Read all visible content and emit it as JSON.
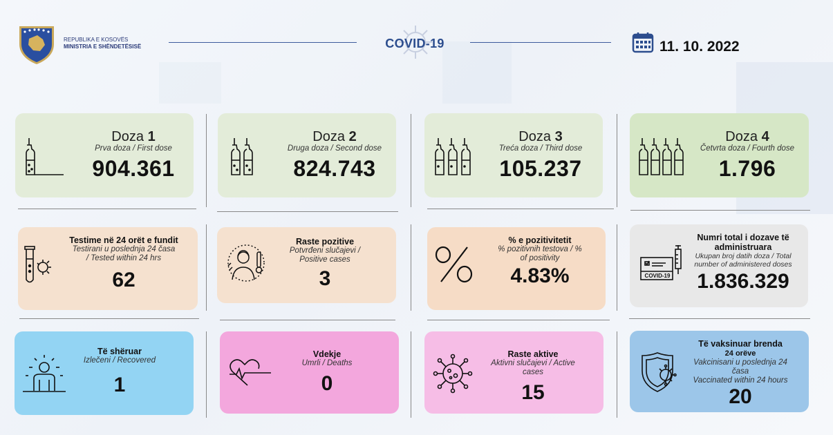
{
  "header": {
    "org_line1": "REPUBLIKA E KOSOVËS",
    "org_line2": "MINISTRIA E SHËNDETËSISË",
    "title": "COVID-19",
    "date": "11. 10. 2022"
  },
  "doses": [
    {
      "word": "Doza",
      "num": "1",
      "sub": "Prva doza / First dose",
      "value": "904.361",
      "icon": "single-vial-icon"
    },
    {
      "word": "Doza",
      "num": "2",
      "sub": "Druga doza / Second dose",
      "value": "824.743",
      "icon": "two-vials-icon"
    },
    {
      "word": "Doza",
      "num": "3",
      "sub": "Treća doza / Third dose",
      "value": "105.237",
      "icon": "three-vials-icon"
    },
    {
      "word": "Doza",
      "num": "4",
      "sub": "Četvrta doza / Fourth dose",
      "value": "1.796",
      "icon": "four-vials-icon"
    }
  ],
  "stats_row2": [
    {
      "head": "Testime në 24 orët e fundit",
      "sub": "Testirani u poslednja 24 časa / Tested within 24 hrs",
      "value": "62",
      "icon": "test-tube-icon"
    },
    {
      "head": "Raste pozitive",
      "sub": "Potvrđeni slučajevi / Positive cases",
      "value": "3",
      "icon": "sick-person-thermometer-icon"
    },
    {
      "head": "% e pozitivitetit",
      "sub": "% pozitivnih testova / % of positivity",
      "value": "4.83%",
      "icon": "percent-icon"
    },
    {
      "head": "Numri total i dozave të administruara",
      "sub": "Ukupan broj datih doza / Total number of administered doses",
      "value": "1.836.329",
      "icon": "vaccine-certificate-icon",
      "cert_label": "COVID-19"
    }
  ],
  "stats_row3": [
    {
      "head": "Të shëruar",
      "sub": "Izlečeni / Recovered",
      "value": "1",
      "icon": "recovered-person-icon"
    },
    {
      "head": "Vdekje",
      "sub": "Umrli / Deaths",
      "value": "0",
      "icon": "heartbeat-icon"
    },
    {
      "head": "Raste aktive",
      "sub": "Aktivni slučajevi / Active cases",
      "value": "15",
      "icon": "virus-icon"
    },
    {
      "head": "Të vaksinuar brenda",
      "head2": "24 orëve",
      "sub": "Vakcinisani u poslednja 24 časa",
      "sub2": "Vaccinated within 24 hours",
      "value": "20",
      "icon": "shield-virus-icon"
    }
  ],
  "colors": {
    "brand_blue": "#2c4d8e",
    "dose_green": "#e3ecd9",
    "peach": "#f5e1cf",
    "blue": "#93d4f3",
    "pink": "#f3a7dd"
  }
}
